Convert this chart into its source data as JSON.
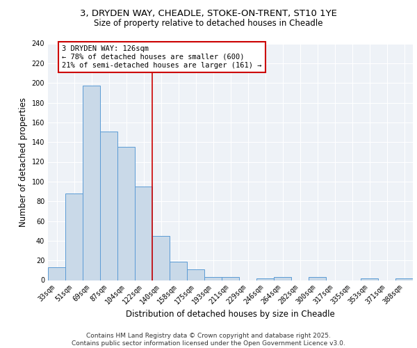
{
  "title_line1": "3, DRYDEN WAY, CHEADLE, STOKE-ON-TRENT, ST10 1YE",
  "title_line2": "Size of property relative to detached houses in Cheadle",
  "xlabel": "Distribution of detached houses by size in Cheadle",
  "ylabel": "Number of detached properties",
  "categories": [
    "33sqm",
    "51sqm",
    "69sqm",
    "87sqm",
    "104sqm",
    "122sqm",
    "140sqm",
    "158sqm",
    "175sqm",
    "193sqm",
    "211sqm",
    "229sqm",
    "246sqm",
    "264sqm",
    "282sqm",
    "300sqm",
    "317sqm",
    "335sqm",
    "353sqm",
    "371sqm",
    "388sqm"
  ],
  "values": [
    13,
    88,
    197,
    151,
    135,
    95,
    45,
    19,
    11,
    3,
    3,
    0,
    2,
    3,
    0,
    3,
    0,
    0,
    2,
    0,
    2
  ],
  "bar_color": "#c9d9e8",
  "bar_edge_color": "#5b9bd5",
  "red_line_index": 5,
  "annotation_text": "3 DRYDEN WAY: 126sqm\n← 78% of detached houses are smaller (600)\n21% of semi-detached houses are larger (161) →",
  "annotation_box_color": "#ffffff",
  "annotation_box_edge_color": "#cc0000",
  "red_line_color": "#cc0000",
  "ylim": [
    0,
    240
  ],
  "yticks": [
    0,
    20,
    40,
    60,
    80,
    100,
    120,
    140,
    160,
    180,
    200,
    220,
    240
  ],
  "footer_line1": "Contains HM Land Registry data © Crown copyright and database right 2025.",
  "footer_line2": "Contains public sector information licensed under the Open Government Licence v3.0.",
  "background_color": "#eef2f7",
  "grid_color": "#ffffff",
  "title_fontsize": 9.5,
  "subtitle_fontsize": 8.5,
  "axis_label_fontsize": 8.5,
  "tick_fontsize": 7,
  "annotation_fontsize": 7.5,
  "footer_fontsize": 6.5
}
